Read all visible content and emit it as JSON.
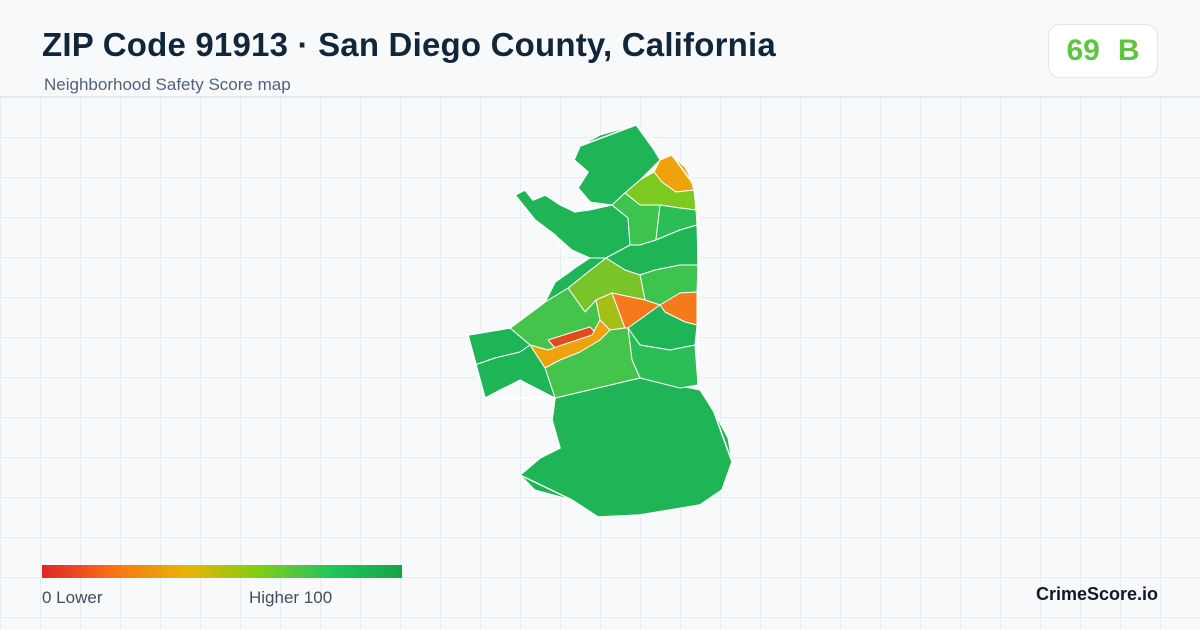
{
  "header": {
    "title": "ZIP Code 91913 · San Diego County, California",
    "subtitle": "Neighborhood Safety Score map"
  },
  "score": {
    "value": "69",
    "grade": "B",
    "color": "#5fc43f"
  },
  "map": {
    "color_scale": [
      "#dc2626",
      "#f97316",
      "#eab308",
      "#84cc16",
      "#22c55e",
      "#16a34a"
    ],
    "outline_color": "#ffffff"
  },
  "legend": {
    "low_label": "0  Lower",
    "high_label": "Higher  100"
  },
  "footer": {
    "brand": "CrimeScore.io"
  }
}
